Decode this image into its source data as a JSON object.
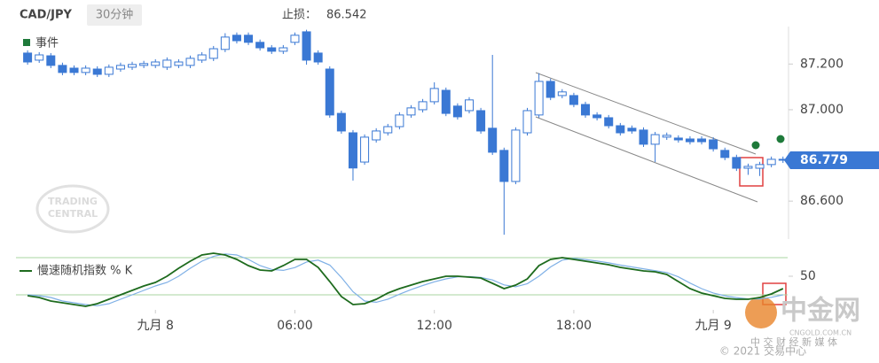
{
  "header": {
    "symbol": "CAD/JPY",
    "interval": "30分钟",
    "stop_label": "止损：",
    "stop_value": 86.542
  },
  "watermark": {
    "line1": "TRADING",
    "line2": "CENTRAL"
  },
  "footer": {
    "brand": "中金网",
    "domain": "CNGOLD.COM.CN",
    "tagline": "中 交 财 经 新 媒 体",
    "copyright": "© 2021 交易中心"
  },
  "chart_data": [
    {
      "type": "candlestick",
      "legend": "事件",
      "color": "#3a78d4",
      "last_price": 86.779,
      "x": [
        -5.5,
        -5,
        -4.5,
        -4,
        -3.5,
        -3,
        -2.5,
        -2,
        -1.5,
        -1,
        -0.5,
        0,
        0.5,
        1,
        1.5,
        2,
        2.5,
        3,
        3.5,
        4,
        4.5,
        5,
        5.5,
        6,
        6.5,
        7,
        7.5,
        8,
        8.5,
        9,
        9.5,
        10,
        10.5,
        11,
        11.5,
        12,
        12.5,
        13,
        13.5,
        14,
        14.5,
        15,
        15.5,
        16,
        16.5,
        17,
        17.5,
        18,
        18.5,
        19,
        19.5,
        20,
        20.5,
        21,
        21.5,
        22,
        22.5,
        23,
        23.5,
        24,
        24.5,
        25,
        25.5,
        26,
        26.5,
        27
      ],
      "open": [
        87.248,
        87.217,
        87.236,
        87.194,
        87.182,
        87.163,
        87.178,
        87.155,
        87.178,
        87.186,
        87.194,
        87.194,
        87.186,
        87.194,
        87.194,
        87.217,
        87.225,
        87.264,
        87.326,
        87.326,
        87.295,
        87.271,
        87.256,
        87.295,
        87.341,
        87.248,
        87.178,
        86.984,
        86.899,
        86.771,
        86.868,
        86.899,
        86.926,
        86.977,
        87.0,
        87.035,
        87.085,
        87.016,
        86.996,
        86.996,
        86.919,
        86.822,
        86.686,
        86.899,
        86.977,
        87.124,
        87.062,
        87.062,
        87.023,
        86.977,
        86.965,
        86.93,
        86.919,
        86.911,
        86.849,
        86.88,
        86.876,
        86.872,
        86.872,
        86.868,
        86.822,
        86.791,
        86.744,
        86.744,
        86.76,
        86.783
      ],
      "high": [
        87.26,
        87.252,
        87.248,
        87.206,
        87.194,
        87.194,
        87.19,
        87.198,
        87.206,
        87.21,
        87.214,
        87.221,
        87.229,
        87.221,
        87.237,
        87.252,
        87.279,
        87.335,
        87.338,
        87.338,
        87.307,
        87.283,
        87.283,
        87.338,
        87.35,
        87.26,
        87.19,
        86.996,
        86.911,
        86.892,
        86.919,
        86.938,
        86.989,
        87.02,
        87.047,
        87.12,
        87.097,
        87.028,
        87.055,
        87.008,
        87.24,
        86.834,
        86.923,
        87.008,
        87.16,
        87.136,
        87.09,
        87.074,
        87.035,
        86.989,
        86.977,
        86.942,
        86.931,
        86.923,
        86.903,
        86.9,
        86.888,
        86.884,
        86.884,
        86.88,
        86.834,
        86.803,
        86.764,
        86.772,
        86.795,
        86.795
      ],
      "low": [
        87.197,
        87.205,
        87.182,
        87.151,
        87.151,
        87.151,
        87.143,
        87.143,
        87.166,
        87.174,
        87.182,
        87.182,
        87.174,
        87.182,
        87.182,
        87.205,
        87.213,
        87.252,
        87.29,
        87.283,
        87.259,
        87.244,
        87.244,
        87.283,
        87.197,
        87.197,
        86.965,
        86.895,
        86.69,
        86.759,
        86.856,
        86.887,
        86.914,
        86.965,
        86.988,
        87.023,
        86.972,
        86.957,
        86.984,
        86.895,
        86.802,
        86.453,
        86.674,
        86.887,
        86.965,
        87.042,
        87.05,
        87.011,
        86.965,
        86.953,
        86.918,
        86.887,
        86.895,
        86.837,
        86.771,
        86.868,
        86.856,
        86.848,
        86.848,
        86.817,
        86.779,
        86.732,
        86.715,
        86.71,
        86.748,
        86.767
      ],
      "close": [
        87.209,
        87.24,
        87.194,
        87.163,
        87.163,
        87.182,
        87.155,
        87.186,
        87.194,
        87.198,
        87.202,
        87.209,
        87.217,
        87.209,
        87.225,
        87.24,
        87.267,
        87.318,
        87.302,
        87.295,
        87.271,
        87.256,
        87.271,
        87.326,
        87.217,
        87.209,
        86.977,
        86.907,
        86.745,
        86.88,
        86.907,
        86.926,
        86.977,
        87.008,
        87.035,
        87.093,
        86.984,
        86.969,
        87.043,
        86.907,
        86.814,
        86.686,
        86.911,
        86.996,
        87.124,
        87.054,
        87.078,
        87.023,
        86.977,
        86.965,
        86.93,
        86.899,
        86.907,
        86.849,
        86.891,
        86.888,
        86.868,
        86.86,
        86.86,
        86.829,
        86.791,
        86.744,
        86.752,
        86.76,
        86.783,
        86.779
      ],
      "xlim": [
        -6,
        27.2
      ],
      "ylim": [
        86.434,
        87.364
      ],
      "yticks": [
        {
          "value": 87.2,
          "label": "87.200"
        },
        {
          "value": 87.0,
          "label": "87.000"
        },
        {
          "value": 86.6,
          "label": "86.600"
        }
      ]
    },
    {
      "type": "line",
      "ylim": [
        -5,
        95
      ],
      "xlim": [
        -6,
        27.2
      ],
      "yticks": [
        50
      ],
      "bands": [
        80,
        20
      ],
      "xticks": [
        {
          "value": 0,
          "label": "九月 8"
        },
        {
          "value": 6,
          "label": "06:00"
        },
        {
          "value": 12,
          "label": "12:00"
        },
        {
          "value": 18,
          "label": "18:00"
        },
        {
          "value": 24,
          "label": "九月 9"
        }
      ],
      "x": [
        -5.5,
        -5,
        -4.5,
        -4,
        -3.5,
        -3,
        -2.5,
        -2,
        -1.5,
        -1,
        -0.5,
        0,
        0.5,
        1,
        1.5,
        2,
        2.5,
        3,
        3.5,
        4,
        4.5,
        5,
        5.5,
        6,
        6.5,
        7,
        7.5,
        8,
        8.5,
        9,
        9.5,
        10,
        10.5,
        11,
        11.5,
        12,
        12.5,
        13,
        13.5,
        14,
        14.5,
        15,
        15.5,
        16,
        16.5,
        17,
        17.5,
        18,
        18.5,
        19,
        19.5,
        20,
        20.5,
        21,
        21.5,
        22,
        22.5,
        23,
        23.5,
        24,
        24.5,
        25,
        25.5,
        26,
        26.5,
        27
      ],
      "series": [
        {
          "name": "慢速随机指数 % K",
          "color": "#1e6b1e",
          "values": [
            18.6,
            15.7,
            10,
            7.1,
            4.3,
            1.4,
            5.7,
            12.9,
            20,
            27.1,
            34.3,
            40,
            50,
            62.9,
            74.3,
            84.3,
            87.1,
            84.3,
            77.1,
            67.1,
            60,
            58.6,
            67.1,
            77.1,
            77.1,
            64.3,
            41.4,
            17.1,
            4.3,
            5.7,
            12.9,
            22.9,
            30,
            35.7,
            41.4,
            45.7,
            50,
            50,
            48.6,
            47.1,
            38.6,
            30,
            35.7,
            45.7,
            67.1,
            77.1,
            80,
            77.1,
            74.3,
            71.4,
            68.6,
            64.3,
            61.4,
            58.6,
            57.1,
            52.9,
            41.4,
            30,
            22.9,
            18.6,
            14.3,
            12.9,
            12.9,
            15.7,
            21.4,
            30
          ]
        },
        {
          "color": "#7fb0e6",
          "values": [
            20,
            18.6,
            15.7,
            10,
            7.1,
            4.3,
            2.5,
            5.7,
            12.9,
            20,
            27.1,
            34.3,
            40,
            50,
            62.9,
            74.3,
            82,
            86,
            84.3,
            77.1,
            67.1,
            61,
            59.5,
            64,
            73,
            76,
            68,
            48,
            25,
            10,
            8,
            13,
            21,
            28.5,
            35,
            41,
            45.7,
            49,
            49.5,
            48,
            44,
            36,
            33,
            38,
            50,
            65,
            76,
            79,
            77,
            74.5,
            71.5,
            68,
            65,
            62,
            59,
            56,
            49,
            39,
            30,
            23,
            18.5,
            15.5,
            13.5,
            13.5,
            16,
            20
          ]
        }
      ]
    }
  ]
}
